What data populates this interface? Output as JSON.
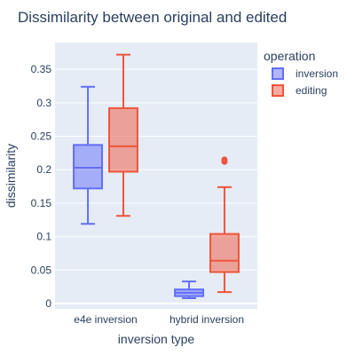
{
  "chart_data": {
    "type": "box",
    "title": "Dissimilarity between original and edited",
    "xlabel": "inversion type",
    "ylabel": "dissimilarity",
    "categories": [
      "e4e inversion",
      "hybrid inversion"
    ],
    "ylim": [
      -0.008,
      0.39
    ],
    "yticks": [
      0,
      0.05,
      0.1,
      0.15,
      0.2,
      0.25,
      0.3,
      0.35
    ],
    "ytick_labels": [
      "0",
      "0.05",
      "0.1",
      "0.15",
      "0.2",
      "0.25",
      "0.3",
      "0.35"
    ],
    "grid": true,
    "legend": {
      "title": "operation",
      "placement": "right"
    },
    "series": [
      {
        "name": "inversion",
        "color": "#636efa",
        "fill": "rgba(99,110,250,0.5)",
        "boxes": [
          {
            "category": "e4e inversion",
            "min": 0.119,
            "q1": 0.172,
            "median": 0.203,
            "q3": 0.237,
            "max": 0.324,
            "outliers": []
          },
          {
            "category": "hybrid inversion",
            "min": 0.008,
            "q1": 0.011,
            "median": 0.016,
            "q3": 0.021,
            "max": 0.033,
            "outliers": []
          }
        ]
      },
      {
        "name": "editing",
        "color": "#ef553b",
        "fill": "rgba(239,85,59,0.5)",
        "boxes": [
          {
            "category": "e4e inversion",
            "min": 0.131,
            "q1": 0.197,
            "median": 0.235,
            "q3": 0.292,
            "max": 0.372,
            "outliers": []
          },
          {
            "category": "hybrid inversion",
            "min": 0.017,
            "q1": 0.047,
            "median": 0.064,
            "q3": 0.104,
            "max": 0.174,
            "outliers": [
              0.212,
              0.215
            ]
          }
        ]
      }
    ]
  }
}
